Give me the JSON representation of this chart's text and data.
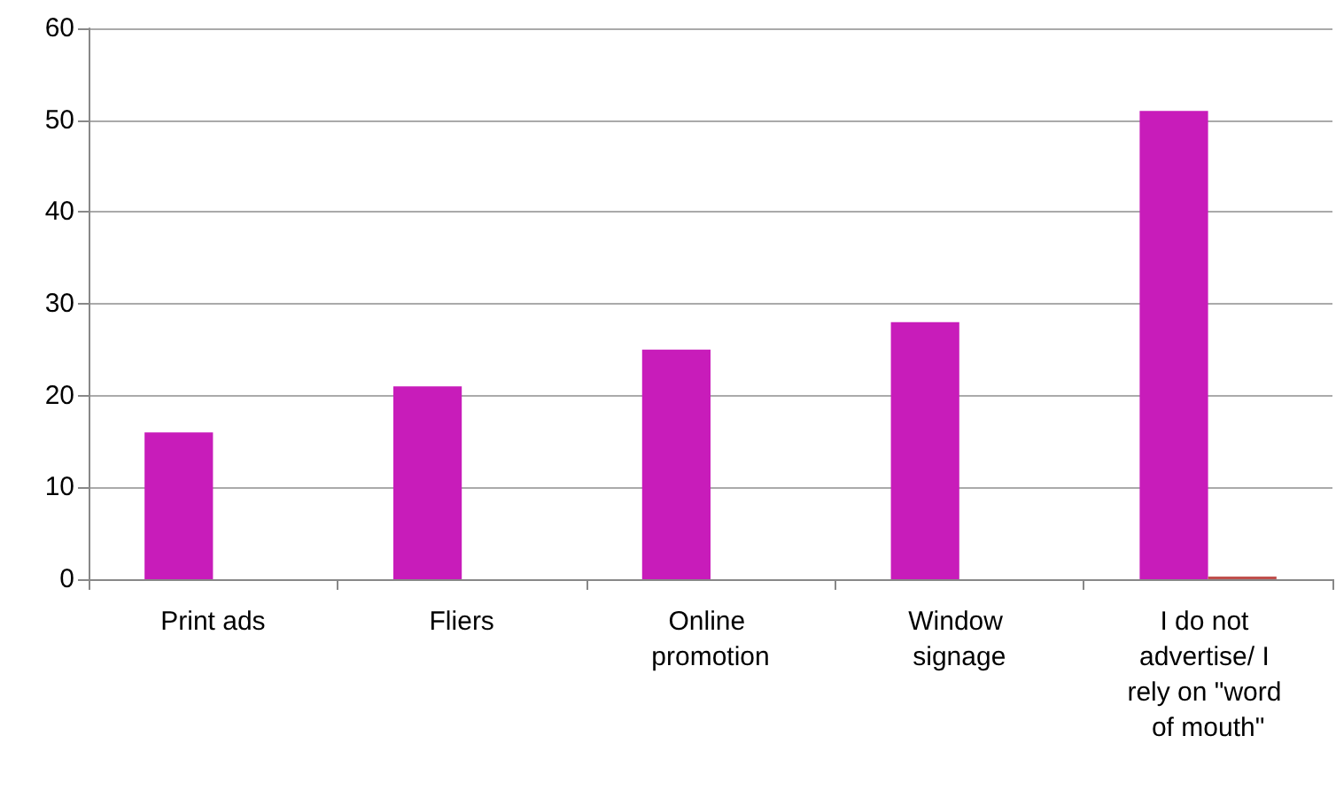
{
  "chart_data": {
    "type": "bar",
    "categories": [
      "Print ads",
      "Fliers",
      "Online promotion",
      "Window signage",
      "I do not advertise/ I rely on \"word of mouth\""
    ],
    "series": [
      {
        "color": "#c81cba",
        "values": [
          16,
          21,
          25,
          28,
          51
        ]
      },
      {
        "color": "#c0504d",
        "values": [
          null,
          null,
          null,
          null,
          0.3
        ]
      }
    ],
    "ylim": [
      0,
      60
    ],
    "yticks": [
      0,
      10,
      20,
      30,
      40,
      50,
      60
    ],
    "grid": "y"
  }
}
